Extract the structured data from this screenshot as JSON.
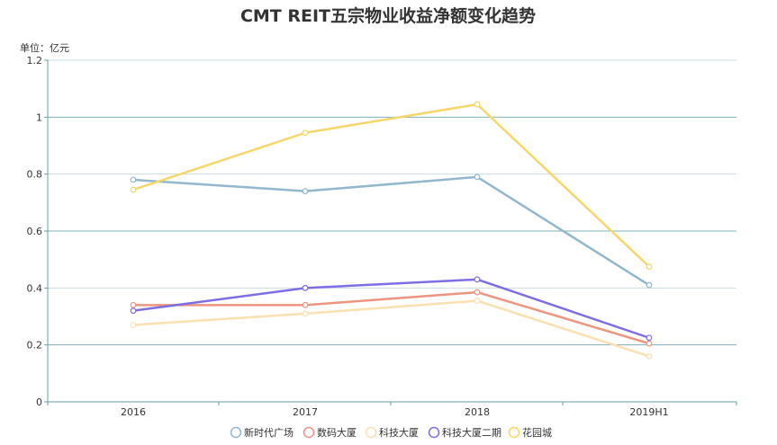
{
  "chart_data": {
    "type": "line",
    "title": "CMT REIT五宗物业收益净额变化趋势",
    "unit_label": "单位：亿元",
    "categories": [
      "2016",
      "2017",
      "2018",
      "2019H1"
    ],
    "ylim": [
      0,
      1.2
    ],
    "yticks": [
      0,
      0.2,
      0.4,
      0.6,
      0.8,
      1,
      1.2
    ],
    "ytick_labels": [
      "0",
      "0.2",
      "0.4",
      "0.6",
      "0.8",
      "1",
      "1.2"
    ],
    "grid": true,
    "legend_position": "bottom",
    "series": [
      {
        "name": "新时代广场",
        "color": "#93b7cf",
        "values": [
          0.78,
          0.74,
          0.79,
          0.41
        ]
      },
      {
        "name": "数码大厦",
        "color": "#ee9580",
        "values": [
          0.34,
          0.34,
          0.385,
          0.205
        ]
      },
      {
        "name": "科技大厦",
        "color": "#fbe0b0",
        "values": [
          0.27,
          0.31,
          0.355,
          0.16
        ]
      },
      {
        "name": "科技大厦二期",
        "color": "#7e6ee6",
        "values": [
          0.32,
          0.4,
          0.43,
          0.225
        ]
      },
      {
        "name": "花园城",
        "color": "#f5d76a",
        "values": [
          0.745,
          0.945,
          1.045,
          0.475
        ]
      }
    ]
  }
}
